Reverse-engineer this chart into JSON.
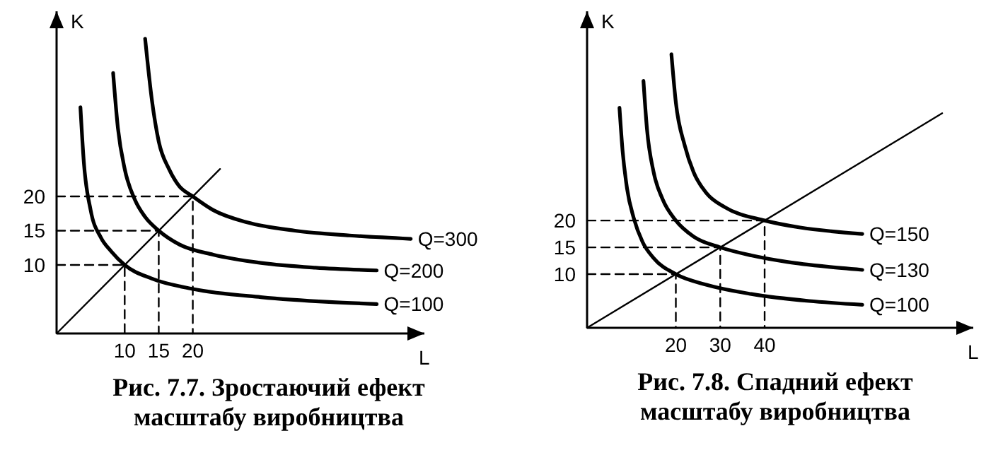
{
  "chart_data": [
    {
      "type": "line",
      "title": "Рис. 7.7. Зростаючий ефект\nмасштабу виробництва",
      "xlabel": "L",
      "ylabel": "K",
      "xlim": [
        0,
        54
      ],
      "ylim": [
        0,
        47
      ],
      "xticks": [
        10,
        15,
        20
      ],
      "yticks": [
        10,
        15,
        20
      ],
      "series": [
        {
          "name": "Q=100",
          "color": "#000000",
          "x": [
            3.5,
            4,
            5,
            6.5,
            8,
            10,
            14,
            20,
            30,
            40,
            47
          ],
          "values": [
            33,
            25,
            18,
            14,
            12,
            10,
            8,
            6.5,
            5.3,
            4.6,
            4.3
          ]
        },
        {
          "name": "Q=200",
          "color": "#000000",
          "x": [
            8.3,
            9,
            10,
            11.5,
            13,
            15,
            18,
            23,
            30,
            38,
            47
          ],
          "values": [
            38,
            30,
            24,
            19.5,
            17,
            15,
            13,
            11.5,
            10.3,
            9.6,
            9.2
          ]
        },
        {
          "name": "Q=300",
          "color": "#000000",
          "x": [
            13,
            14,
            15,
            16.5,
            18,
            20,
            23,
            28,
            35,
            43,
            52
          ],
          "values": [
            43,
            34,
            28,
            24,
            21.5,
            20,
            18,
            16.2,
            15,
            14.3,
            13.8
          ]
        },
        {
          "color": "#000000",
          "x": [
            0,
            24
          ],
          "values": [
            0,
            24
          ]
        },
        {
          "color": "#000000",
          "line_style": "dashed",
          "x": [
            0,
            10,
            10
          ],
          "values": [
            10,
            10,
            0
          ]
        },
        {
          "color": "#000000",
          "line_style": "dashed",
          "x": [
            0,
            15,
            15
          ],
          "values": [
            15,
            15,
            0
          ]
        },
        {
          "color": "#000000",
          "line_style": "dashed",
          "x": [
            0,
            20,
            20
          ],
          "values": [
            20,
            20,
            0
          ]
        }
      ]
    },
    {
      "type": "line",
      "title": "Рис. 7.8. Спадний ефект\nмасштабу виробництва",
      "xlabel": "L",
      "ylabel": "K",
      "xlim": [
        0,
        87
      ],
      "ylim": [
        0,
        59
      ],
      "xticks": [
        20,
        30,
        40
      ],
      "yticks": [
        10,
        15,
        20
      ],
      "series": [
        {
          "name": "Q=100",
          "color": "#000000",
          "x": [
            7.3,
            8,
            9,
            10.5,
            12.5,
            15,
            20,
            27,
            37,
            50,
            62
          ],
          "values": [
            41,
            33,
            26,
            20.5,
            16,
            13,
            10,
            8,
            6.3,
            5,
            4.3
          ]
        },
        {
          "name": "Q=130",
          "color": "#000000",
          "x": [
            12.7,
            13.5,
            15,
            17,
            20,
            24,
            30,
            37,
            45,
            54,
            62
          ],
          "values": [
            46,
            37,
            29,
            24,
            20,
            17,
            15,
            13.5,
            12.3,
            11.4,
            10.8
          ]
        },
        {
          "name": "Q=150",
          "color": "#000000",
          "x": [
            19,
            20,
            22,
            24,
            27,
            31,
            40,
            48,
            55,
            62
          ],
          "values": [
            51,
            42,
            34,
            29,
            25,
            22.5,
            20,
            18.7,
            18,
            17.5
          ]
        },
        {
          "color": "#000000",
          "x": [
            0,
            80
          ],
          "values": [
            0,
            40
          ]
        },
        {
          "color": "#000000",
          "line_style": "dashed",
          "x": [
            0,
            20,
            20
          ],
          "values": [
            10,
            10,
            0
          ]
        },
        {
          "color": "#000000",
          "line_style": "dashed",
          "x": [
            0,
            30,
            30
          ],
          "values": [
            15,
            15,
            0
          ]
        },
        {
          "color": "#000000",
          "line_style": "dashed",
          "x": [
            0,
            40,
            40
          ],
          "values": [
            20,
            20,
            0
          ]
        }
      ]
    }
  ]
}
